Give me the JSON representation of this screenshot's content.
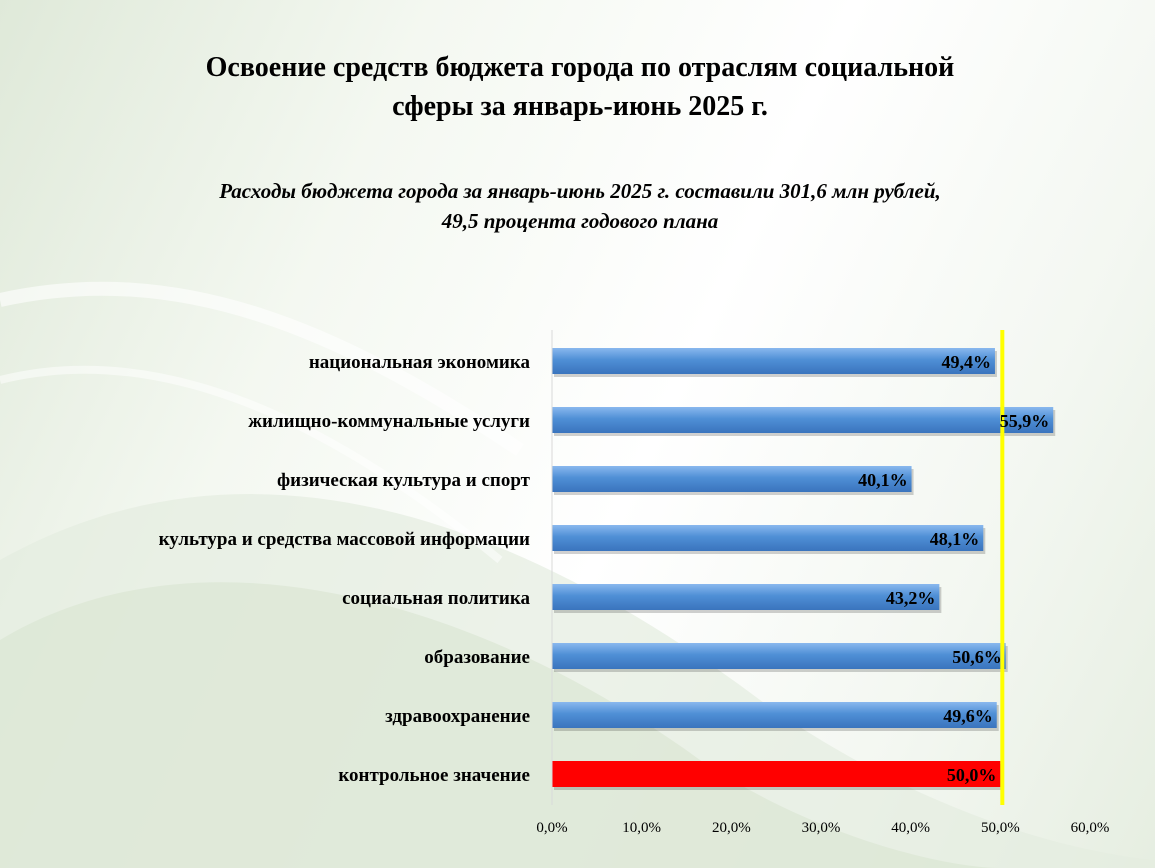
{
  "page": {
    "title_line1": "Освоение средств бюджета города по отраслям социальной",
    "title_line2": "сферы за январь-июнь 2025 г.",
    "subtitle_line1": "Расходы бюджета города за январь-июнь 2025 г. составили 301,6 млн рублей,",
    "subtitle_line2": "49,5 процента годового плана"
  },
  "colors": {
    "bar": "#4f8fd6",
    "bar_highlight": "#ff0000",
    "reference_line": "#ffff00"
  },
  "chart_data": {
    "type": "bar",
    "orientation": "horizontal",
    "categories": [
      "национальная экономика",
      "жилищно-коммунальные услуги",
      "физическая культура и спорт",
      "культура и средства массовой информации",
      "социальная политика",
      "образование",
      "здравоохранение",
      "контрольное значение"
    ],
    "values": [
      49.4,
      55.9,
      40.1,
      48.1,
      43.2,
      50.6,
      49.6,
      50.0
    ],
    "value_labels": [
      "49,4%",
      "55,9%",
      "40,1%",
      "48,1%",
      "43,2%",
      "50,6%",
      "49,6%",
      "50,0%"
    ],
    "highlight_index": 7,
    "xlim": [
      0,
      60
    ],
    "x_ticks": [
      0,
      10,
      20,
      30,
      40,
      50,
      60
    ],
    "x_tick_labels": [
      "0,0%",
      "10,0%",
      "20,0%",
      "30,0%",
      "40,0%",
      "50,0%",
      "60,0%"
    ],
    "reference_value": 50,
    "grid": false,
    "legend": "none"
  }
}
